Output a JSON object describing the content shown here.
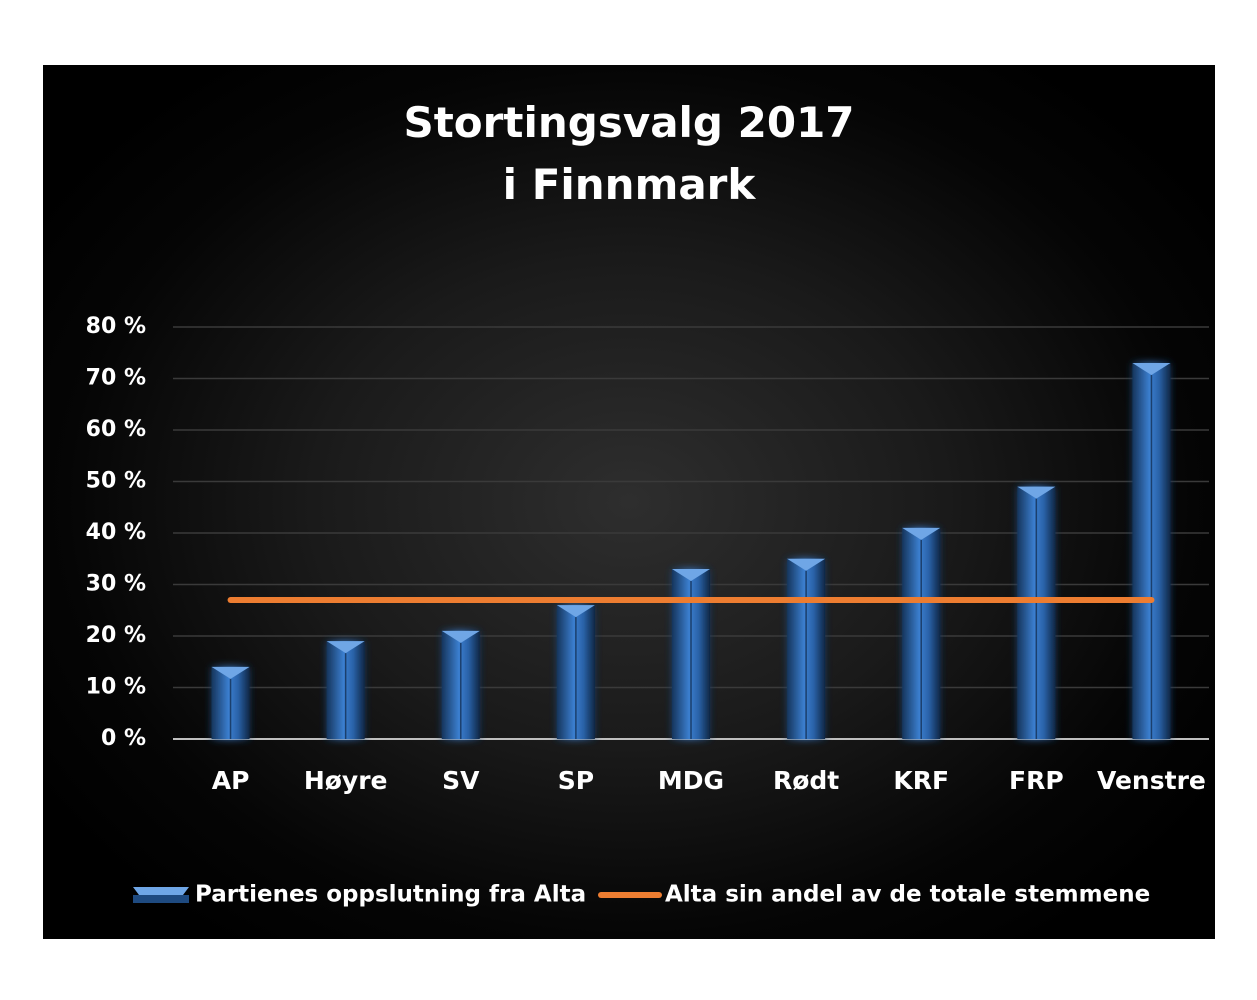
{
  "chart_data": {
    "type": "bar",
    "title_lines": [
      "Stortingsvalg 2017",
      "i Finnmark"
    ],
    "categories": [
      "AP",
      "Høyre",
      "SV",
      "SP",
      "MDG",
      "Rødt",
      "KRF",
      "FRP",
      "Venstre"
    ],
    "series": [
      {
        "name": "Partienes oppslutning fra Alta",
        "type": "bar",
        "values": [
          14,
          19,
          21,
          26,
          33,
          35,
          41,
          49,
          73
        ],
        "color": "#2f6cb4"
      },
      {
        "name": "Alta sin andel av de totale stemmene",
        "type": "line",
        "values": [
          27,
          27,
          27,
          27,
          27,
          27,
          27,
          27,
          27
        ],
        "color": "#ed7d31"
      }
    ],
    "y_ticks": [
      "0 %",
      "10 %",
      "20 %",
      "30 %",
      "40 %",
      "50 %",
      "60 %",
      "70 %",
      "80 %"
    ],
    "ylim": [
      0,
      80
    ],
    "grid": true,
    "legend_position": "bottom",
    "background": "#000000"
  }
}
